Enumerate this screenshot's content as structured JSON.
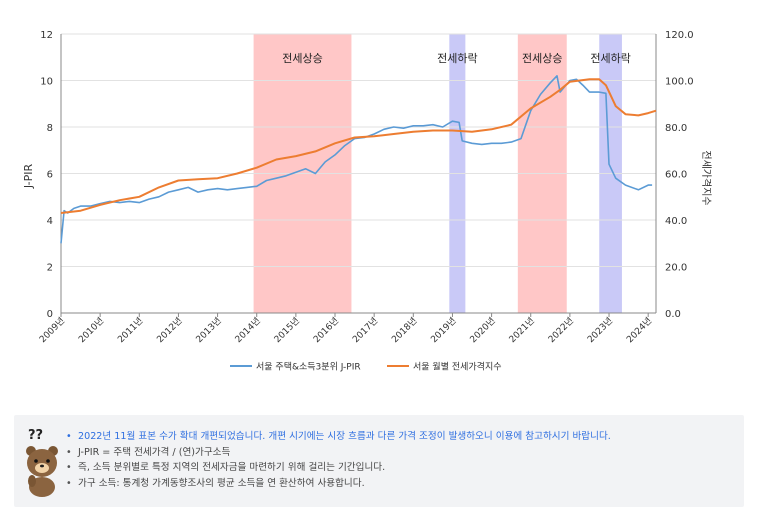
{
  "chart_data": {
    "type": "line",
    "left_axis": {
      "label": "J-PIR",
      "ticks": [
        "0",
        "2",
        "4",
        "6",
        "8",
        "10",
        "12"
      ],
      "range": [
        0,
        12
      ]
    },
    "right_axis": {
      "label": "전세가격지수",
      "ticks": [
        "0.0",
        "20.0",
        "40.0",
        "60.0",
        "80.0",
        "100.0",
        "120.0"
      ],
      "range": [
        0,
        120
      ]
    },
    "x_axis": {
      "range": [
        2009,
        2024.2
      ],
      "ticks": [
        "2009년",
        "2010년",
        "2011년",
        "2012년",
        "2013년",
        "2014년",
        "2015년",
        "2016년",
        "2017년",
        "2018년",
        "2019년",
        "2020년",
        "2021년",
        "2022년",
        "2023년",
        "2024년"
      ]
    },
    "shaded_periods": [
      {
        "label": "전세상승",
        "start": 2013.92,
        "end": 2016.42,
        "color": "#ffc7c7"
      },
      {
        "label": "전세하락",
        "start": 2018.92,
        "end": 2019.33,
        "color": "#c9c9f7"
      },
      {
        "label": "전세상승",
        "start": 2020.67,
        "end": 2021.92,
        "color": "#ffc7c7"
      },
      {
        "label": "전세하락",
        "start": 2022.75,
        "end": 2023.33,
        "color": "#c9c9f7"
      }
    ],
    "series": [
      {
        "name": "서울 주택&소득3분위 J-PIR",
        "axis": "left",
        "color": "#5b9bd5",
        "points": [
          [
            2009.0,
            3.0
          ],
          [
            2009.08,
            4.4
          ],
          [
            2009.17,
            4.3
          ],
          [
            2009.33,
            4.5
          ],
          [
            2009.5,
            4.6
          ],
          [
            2009.75,
            4.6
          ],
          [
            2010.0,
            4.7
          ],
          [
            2010.25,
            4.8
          ],
          [
            2010.5,
            4.75
          ],
          [
            2010.75,
            4.8
          ],
          [
            2011.0,
            4.75
          ],
          [
            2011.25,
            4.9
          ],
          [
            2011.5,
            5.0
          ],
          [
            2011.75,
            5.2
          ],
          [
            2012.0,
            5.3
          ],
          [
            2012.25,
            5.4
          ],
          [
            2012.5,
            5.2
          ],
          [
            2012.75,
            5.3
          ],
          [
            2013.0,
            5.35
          ],
          [
            2013.25,
            5.3
          ],
          [
            2013.5,
            5.35
          ],
          [
            2013.75,
            5.4
          ],
          [
            2014.0,
            5.45
          ],
          [
            2014.25,
            5.7
          ],
          [
            2014.5,
            5.8
          ],
          [
            2014.75,
            5.9
          ],
          [
            2015.0,
            6.05
          ],
          [
            2015.25,
            6.2
          ],
          [
            2015.5,
            6.0
          ],
          [
            2015.75,
            6.5
          ],
          [
            2016.0,
            6.8
          ],
          [
            2016.25,
            7.2
          ],
          [
            2016.5,
            7.5
          ],
          [
            2016.75,
            7.55
          ],
          [
            2017.0,
            7.7
          ],
          [
            2017.25,
            7.9
          ],
          [
            2017.5,
            8.0
          ],
          [
            2017.75,
            7.95
          ],
          [
            2018.0,
            8.05
          ],
          [
            2018.25,
            8.05
          ],
          [
            2018.5,
            8.1
          ],
          [
            2018.75,
            8.0
          ],
          [
            2019.0,
            8.25
          ],
          [
            2019.17,
            8.2
          ],
          [
            2019.25,
            7.4
          ],
          [
            2019.5,
            7.3
          ],
          [
            2019.75,
            7.25
          ],
          [
            2020.0,
            7.3
          ],
          [
            2020.25,
            7.3
          ],
          [
            2020.5,
            7.35
          ],
          [
            2020.75,
            7.5
          ],
          [
            2021.0,
            8.7
          ],
          [
            2021.25,
            9.4
          ],
          [
            2021.5,
            9.9
          ],
          [
            2021.67,
            10.2
          ],
          [
            2021.75,
            9.5
          ],
          [
            2022.0,
            10.0
          ],
          [
            2022.17,
            10.05
          ],
          [
            2022.33,
            9.8
          ],
          [
            2022.5,
            9.5
          ],
          [
            2022.75,
            9.5
          ],
          [
            2022.92,
            9.45
          ],
          [
            2023.0,
            6.4
          ],
          [
            2023.17,
            5.8
          ],
          [
            2023.42,
            5.5
          ],
          [
            2023.75,
            5.3
          ],
          [
            2024.0,
            5.5
          ],
          [
            2024.1,
            5.5
          ]
        ]
      },
      {
        "name": "서울 월별 전세가격지수",
        "axis": "right",
        "color": "#ed7d31",
        "points": [
          [
            2009.0,
            43
          ],
          [
            2009.5,
            44
          ],
          [
            2010.0,
            46.5
          ],
          [
            2010.5,
            48.5
          ],
          [
            2011.0,
            50
          ],
          [
            2011.5,
            54
          ],
          [
            2012.0,
            57
          ],
          [
            2012.5,
            57.5
          ],
          [
            2013.0,
            58
          ],
          [
            2013.5,
            60
          ],
          [
            2014.0,
            62.5
          ],
          [
            2014.5,
            66
          ],
          [
            2015.0,
            67.5
          ],
          [
            2015.5,
            69.5
          ],
          [
            2016.0,
            73
          ],
          [
            2016.5,
            75.5
          ],
          [
            2017.0,
            76
          ],
          [
            2017.5,
            77
          ],
          [
            2018.0,
            78
          ],
          [
            2018.5,
            78.5
          ],
          [
            2019.0,
            78.5
          ],
          [
            2019.5,
            78
          ],
          [
            2020.0,
            79
          ],
          [
            2020.5,
            81
          ],
          [
            2021.0,
            88
          ],
          [
            2021.5,
            93
          ],
          [
            2021.75,
            96
          ],
          [
            2022.0,
            99.5
          ],
          [
            2022.5,
            100.5
          ],
          [
            2022.75,
            100.5
          ],
          [
            2022.92,
            98
          ],
          [
            2023.17,
            89
          ],
          [
            2023.42,
            85.5
          ],
          [
            2023.75,
            85
          ],
          [
            2024.0,
            86
          ],
          [
            2024.2,
            87
          ]
        ]
      }
    ],
    "legend_position": "bottom-center",
    "grid": true
  },
  "notes": [
    "2022년 11월 표본 수가 확대 개편되었습니다. 개편 시기에는 시장 흐름과 다른 가격 조정이 발생하오니 이용에 참고하시기 바랍니다.",
    "J-PIR = 주택 전세가격 / (연)가구소득",
    "즉, 소득 분위별로 특정 지역의 전세자금을 마련하기 위해 걸리는 기간입니다.",
    "가구 소득: 통계청 가계동향조사의 평균 소득을 연 환산하여 사용합니다."
  ],
  "note_bullet": "•",
  "mascot": {
    "icon": "bear-question-icon",
    "label": "??"
  }
}
